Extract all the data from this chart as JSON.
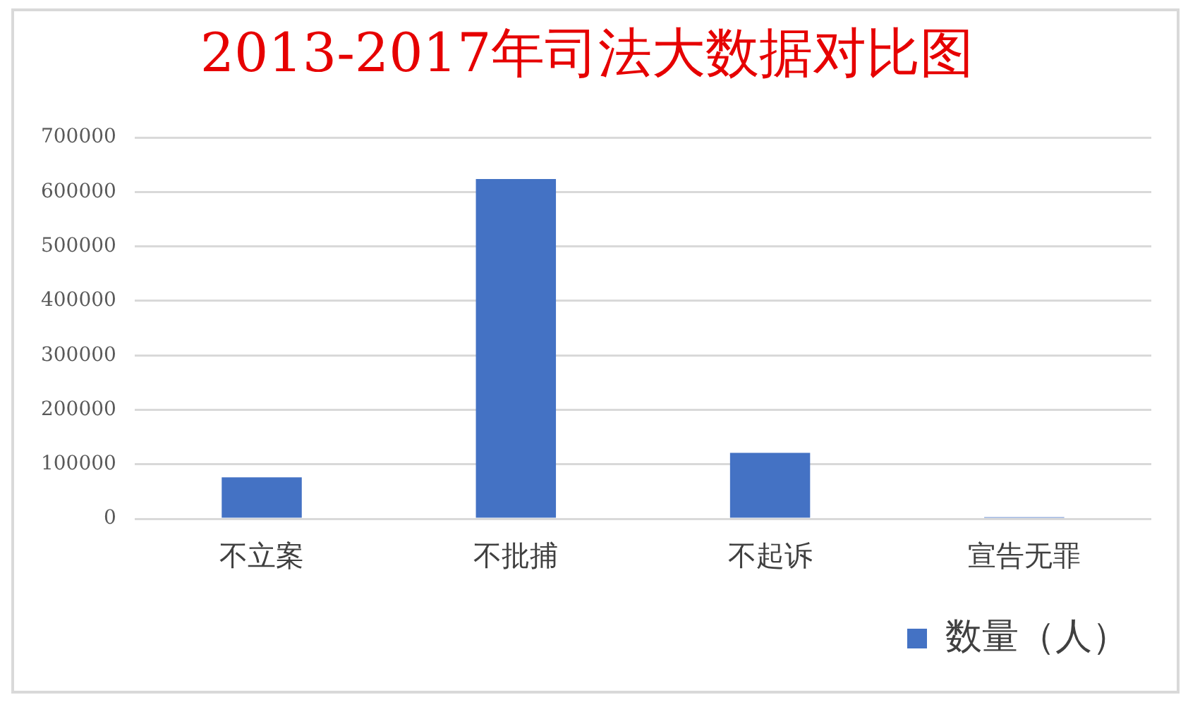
{
  "chart_data": {
    "type": "bar",
    "title": "2013-2017年司法大数据对比图",
    "categories": [
      "不立案",
      "不批捕",
      "不起诉",
      "宣告无罪"
    ],
    "series": [
      {
        "name": "数量（人）",
        "color": "#4472c4",
        "values": [
          76000,
          624000,
          121000,
          3000
        ]
      }
    ],
    "ylim": [
      0,
      700000
    ],
    "yticks": [
      0,
      100000,
      200000,
      300000,
      400000,
      500000,
      600000,
      700000
    ],
    "grid": "y",
    "legend": "bottom right"
  }
}
